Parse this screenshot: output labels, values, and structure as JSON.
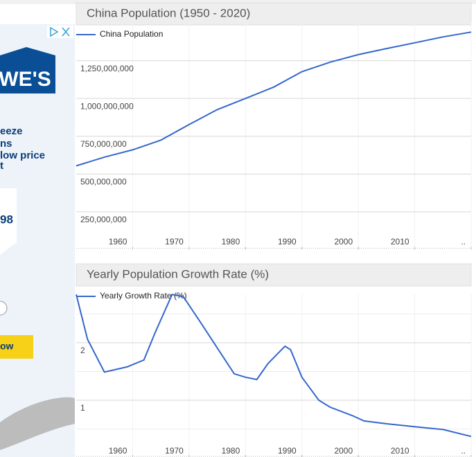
{
  "chart_data": [
    {
      "type": "line",
      "title": "China Population (1950 - 2020)",
      "series": [
        {
          "name": "China Population",
          "color": "#3366cc",
          "x": [
            1950,
            1955,
            1960,
            1965,
            1970,
            1975,
            1980,
            1985,
            1990,
            1995,
            2000,
            2005,
            2010,
            2015,
            2020
          ],
          "values": [
            554000000,
            612000000,
            660000000,
            724000000,
            827000000,
            926000000,
            1000000000,
            1075000000,
            1177000000,
            1240000000,
            1290000000,
            1330000000,
            1368000000,
            1407000000,
            1439000000
          ]
        }
      ],
      "xlim": [
        1950,
        2020
      ],
      "xticks": [
        1960,
        1970,
        1980,
        1990,
        2000,
        2010,
        {
          "value": 2020,
          "label": ".."
        }
      ],
      "ylim": [
        0,
        1500000000
      ],
      "yticks": [
        {
          "value": 250000000,
          "label": "250,000,000"
        },
        {
          "value": 500000000,
          "label": "500,000,000"
        },
        {
          "value": 750000000,
          "label": "750,000,000"
        },
        {
          "value": 1000000000,
          "label": "1,000,000,000"
        },
        {
          "value": 1250000000,
          "label": "1,250,000,000"
        }
      ],
      "grid": true,
      "legend": "top-left"
    },
    {
      "type": "line",
      "title": "Yearly Population Growth Rate (%)",
      "series": [
        {
          "name": "Yearly Growth Rate (%)",
          "color": "#3366cc",
          "x": [
            1950,
            1952,
            1955,
            1959,
            1962,
            1964,
            1967,
            1969,
            1972,
            1978,
            1980,
            1982,
            1984,
            1987,
            1988,
            1990,
            1993,
            1995,
            1999,
            2001,
            2005,
            2010,
            2015,
            2020
          ],
          "values": [
            2.84,
            2.06,
            1.49,
            1.58,
            1.7,
            2.18,
            2.84,
            2.8,
            2.36,
            1.46,
            1.4,
            1.36,
            1.64,
            1.94,
            1.88,
            1.4,
            1.0,
            0.88,
            0.73,
            0.64,
            0.59,
            0.54,
            0.49,
            0.37
          ]
        }
      ],
      "xlim": [
        1950,
        2020
      ],
      "xticks": [
        1960,
        1970,
        1980,
        1990,
        2000,
        2010,
        {
          "value": 2020,
          "label": ".."
        }
      ],
      "ylim": [
        0,
        2.85
      ],
      "yticks": [
        1,
        2
      ],
      "minor_yticks": [
        0.5,
        1.5,
        2.5
      ],
      "grid": true,
      "legend": "top-left"
    }
  ],
  "ad": {
    "logo": "WE'S",
    "line1": "eeze",
    "line2": "ns",
    "line3": "low price",
    "line4": "t",
    "price": "98",
    "button": "ow"
  }
}
